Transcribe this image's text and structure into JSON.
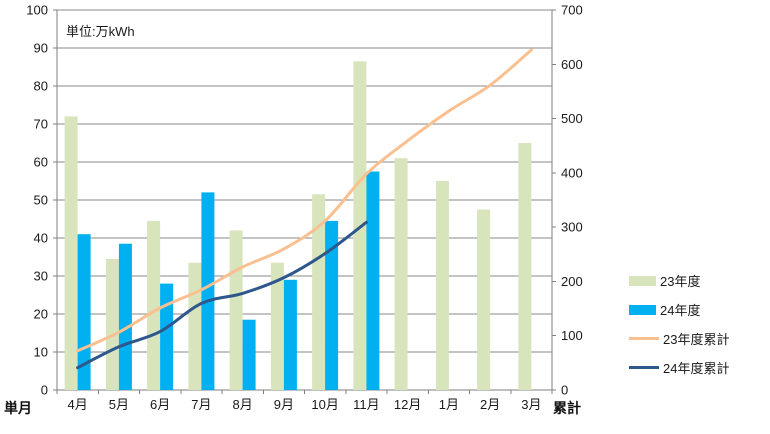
{
  "page": {
    "background": "#FFFFFF"
  },
  "unit_label": "単位:万kWh",
  "axis_corner_labels": {
    "left": "単月",
    "right": "累計"
  },
  "chart_data": {
    "type": "bar+line",
    "title": "",
    "categories": [
      "4月",
      "5月",
      "6月",
      "7月",
      "8月",
      "9月",
      "10月",
      "11月",
      "12月",
      "1月",
      "2月",
      "3月"
    ],
    "series": [
      {
        "name": "23年度",
        "chart": "bar",
        "axis": "left",
        "color": "#D7E4BC",
        "values": [
          72,
          34.5,
          44.5,
          33.5,
          42,
          33.5,
          51.5,
          86.5,
          61,
          55,
          47.5,
          65
        ]
      },
      {
        "name": "24年度",
        "chart": "bar",
        "axis": "left",
        "color": "#00B0F0",
        "values": [
          41,
          38.5,
          28,
          52,
          18.5,
          29,
          44.5,
          57.5
        ]
      },
      {
        "name": "23年度累計",
        "chart": "line",
        "axis": "right",
        "color": "#FAC090",
        "values": [
          72,
          106.5,
          151,
          184.5,
          226.5,
          260,
          311.5,
          398,
          459,
          514,
          561.5,
          626.5
        ]
      },
      {
        "name": "24年度累計",
        "chart": "line",
        "axis": "right",
        "color": "#2E578C",
        "values": [
          41,
          79.5,
          107.5,
          159.5,
          178,
          207,
          251.5,
          309
        ]
      }
    ],
    "axes": {
      "left": {
        "title": "単月",
        "min": 0,
        "max": 100,
        "step": 10
      },
      "right": {
        "title": "累計",
        "min": 0,
        "max": 700,
        "step": 100
      }
    },
    "grid": true,
    "legend_position": "right",
    "style": {
      "grid_color": "#8A8A8A",
      "axis_color": "#7F7F7F",
      "tick_text_color": "#1A1A1A"
    }
  }
}
